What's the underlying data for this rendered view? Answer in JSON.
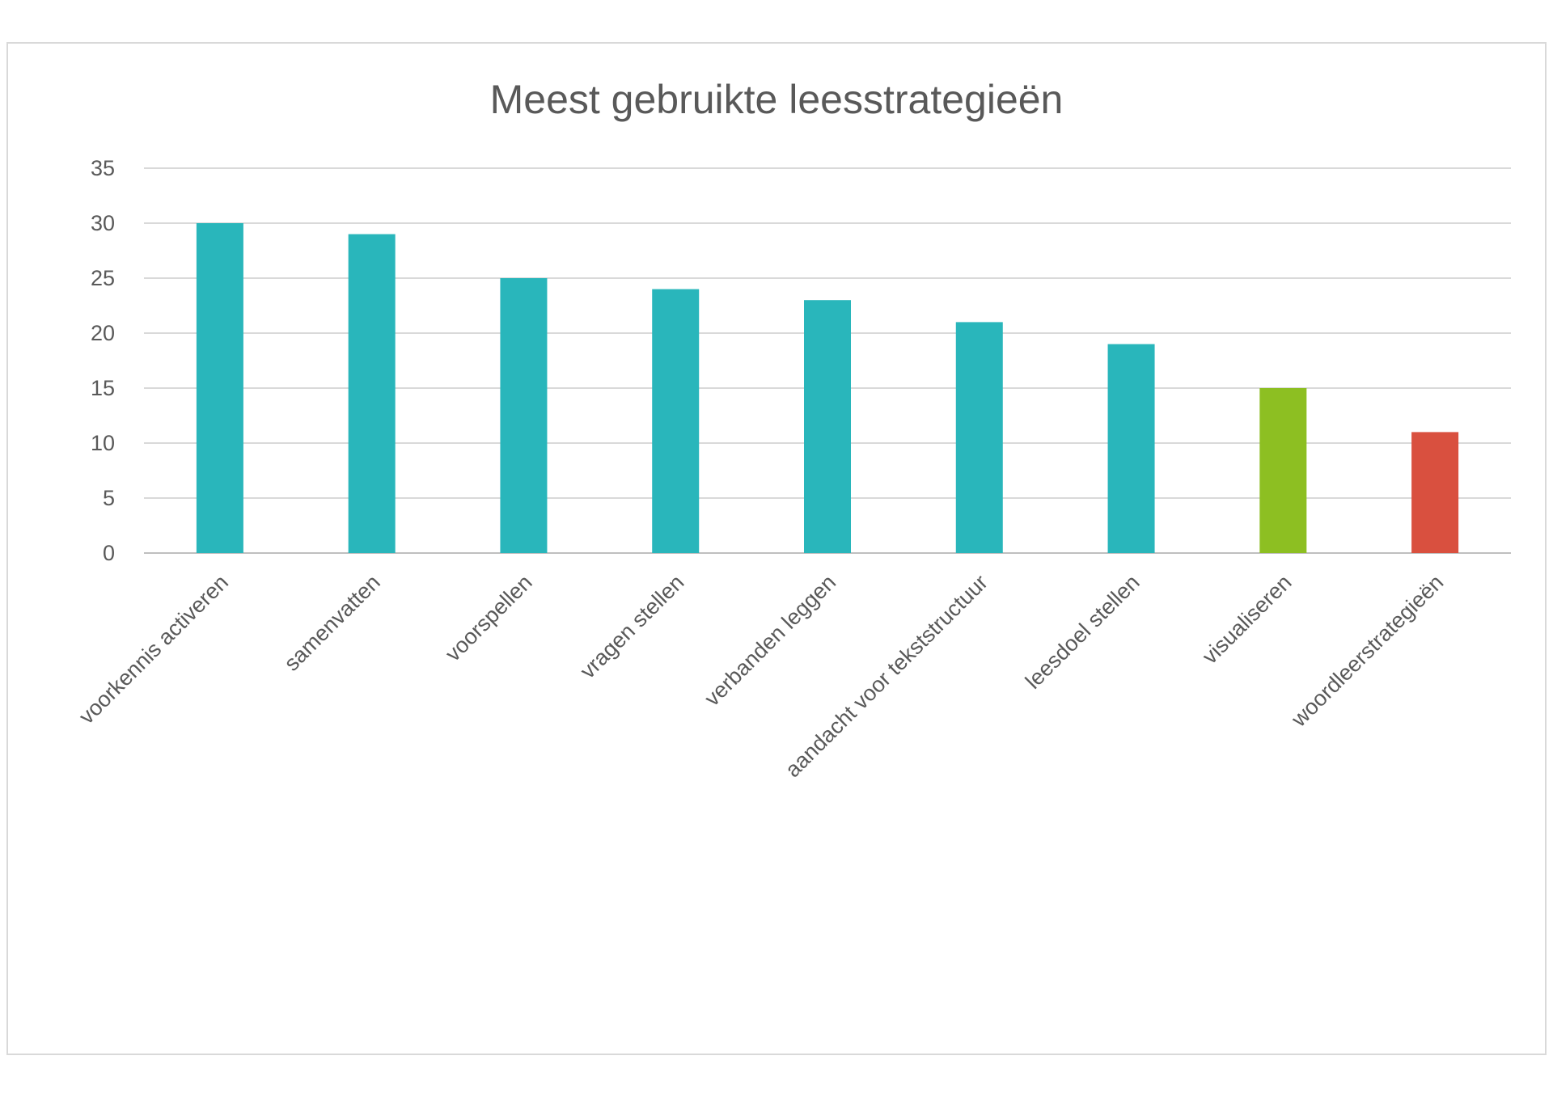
{
  "chart_data": {
    "type": "bar",
    "title": "Meest gebruikte leesstrategieën",
    "xlabel": "",
    "ylabel": "",
    "categories": [
      "voorkennis activeren",
      "samenvatten",
      "voorspellen",
      "vragen stellen",
      "verbanden leggen",
      "aandacht voor tekststructuur",
      "leesdoel stellen",
      "visualiseren",
      "woordleerstrategieën"
    ],
    "values": [
      30,
      29,
      25,
      24,
      23,
      21,
      19,
      15,
      11
    ],
    "bar_colors": [
      "#29b6bb",
      "#29b6bb",
      "#29b6bb",
      "#29b6bb",
      "#29b6bb",
      "#29b6bb",
      "#29b6bb",
      "#8dbf22",
      "#d9503f"
    ],
    "ylim": [
      0,
      35
    ],
    "yticks": [
      "0",
      "5",
      "10",
      "15",
      "20",
      "25",
      "30",
      "35"
    ],
    "grid": true,
    "legend": "none"
  },
  "colors": {
    "text": "#595959",
    "gridline": "#d9d9d9",
    "frame": "#d9d9d9"
  }
}
